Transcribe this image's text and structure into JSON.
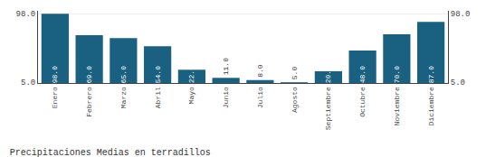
{
  "chart_data": {
    "type": "bar",
    "title": "Precipitaciones Medias en terradillos",
    "categories": [
      "Enero",
      "Febrero",
      "Marzo",
      "Abril",
      "Mayo",
      "Junio",
      "Julio",
      "Agosto",
      "Septiembre",
      "Octubre",
      "Noviembre",
      "Diciembre"
    ],
    "values": [
      98.0,
      69.0,
      65.0,
      54.0,
      22.0,
      11.0,
      8.0,
      5.0,
      20.0,
      48.0,
      70.0,
      87.0
    ],
    "value_labels": [
      "98.0",
      "69.0",
      "65.0",
      "54.0",
      "22.0",
      "11.0",
      "8.0",
      "5.0",
      "20.0",
      "48.0",
      "70.0",
      "87.0"
    ],
    "color": "#1a6080",
    "ylim": [
      4,
      101.92
    ],
    "yticks": [
      {
        "value": 5,
        "label": "5.0"
      },
      {
        "value": 98,
        "label": "98.0"
      }
    ],
    "y2lim": [
      4,
      101.92
    ],
    "y2ticks": [
      {
        "value": 5,
        "label": "5.0"
      },
      {
        "value": 98,
        "label": "98.0"
      }
    ],
    "grid": true,
    "data_labels": true
  }
}
